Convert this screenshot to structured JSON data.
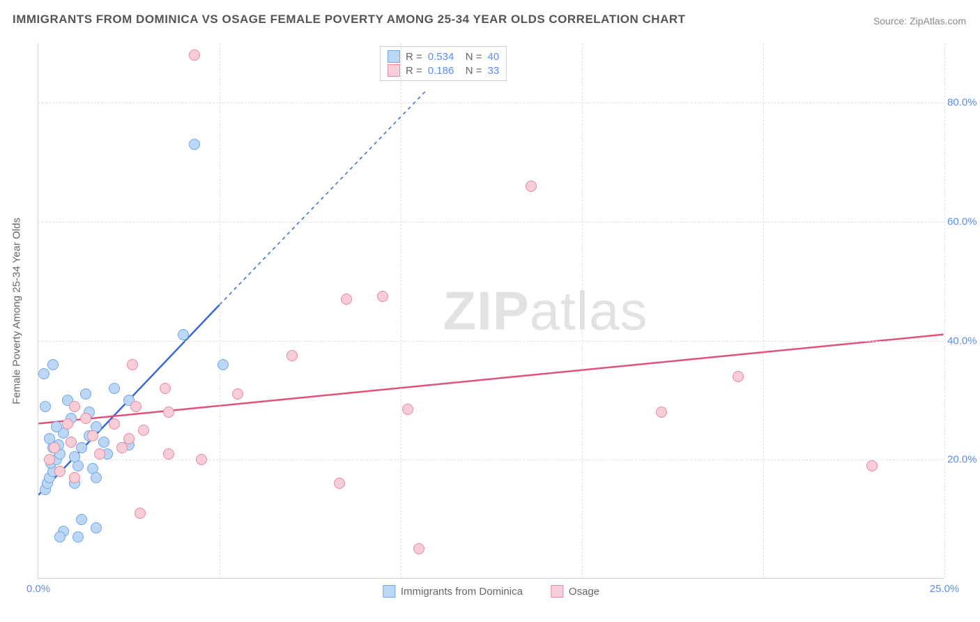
{
  "title": "IMMIGRANTS FROM DOMINICA VS OSAGE FEMALE POVERTY AMONG 25-34 YEAR OLDS CORRELATION CHART",
  "source_label": "Source: ZipAtlas.com",
  "watermark_a": "ZIP",
  "watermark_b": "atlas",
  "chart": {
    "type": "scatter",
    "background_color": "#ffffff",
    "grid_color": "#e0e0e0",
    "axis_color": "#d0d0d0",
    "tick_color": "#5b8def",
    "text_color": "#666666",
    "title_color": "#555555",
    "title_fontsize": 17,
    "label_fontsize": 15,
    "tick_fontsize": 15,
    "ylabel": "Female Poverty Among 25-34 Year Olds",
    "xlim": [
      0,
      25
    ],
    "ylim": [
      0,
      90
    ],
    "xticks": [
      0,
      25
    ],
    "xtick_labels": [
      "0.0%",
      "25.0%"
    ],
    "yticks": [
      20,
      40,
      60,
      80
    ],
    "ytick_labels": [
      "20.0%",
      "40.0%",
      "60.0%",
      "80.0%"
    ],
    "x_gridlines": [
      5,
      10,
      15,
      20,
      25
    ],
    "marker_radius": 8,
    "marker_stroke_width": 1.2,
    "series": [
      {
        "name": "Immigrants from Dominica",
        "color_fill": "#bcd7f5",
        "color_stroke": "#6fa7e6",
        "trend_color": "#3669d6",
        "R": "0.534",
        "N": "40",
        "trend": {
          "x1": 0,
          "y1": 14,
          "x2": 5,
          "y2": 46,
          "dash_to_x": 10.7,
          "dash_to_y": 82
        },
        "points": [
          [
            0.2,
            15
          ],
          [
            0.25,
            16
          ],
          [
            0.3,
            17
          ],
          [
            0.4,
            18
          ],
          [
            0.35,
            19.5
          ],
          [
            0.5,
            20
          ],
          [
            0.6,
            21
          ],
          [
            0.4,
            22
          ],
          [
            0.55,
            22.5
          ],
          [
            0.3,
            23.5
          ],
          [
            0.7,
            24.5
          ],
          [
            0.5,
            25.5
          ],
          [
            0.9,
            27
          ],
          [
            0.2,
            29
          ],
          [
            0.8,
            30
          ],
          [
            0.15,
            34.5
          ],
          [
            0.4,
            36
          ],
          [
            1.1,
            19
          ],
          [
            1.0,
            20.5
          ],
          [
            1.2,
            22
          ],
          [
            1.4,
            24
          ],
          [
            1.6,
            25.5
          ],
          [
            1.4,
            28
          ],
          [
            1.3,
            31
          ],
          [
            1.0,
            16
          ],
          [
            1.5,
            18.5
          ],
          [
            1.9,
            21
          ],
          [
            1.8,
            23
          ],
          [
            2.5,
            22.5
          ],
          [
            2.1,
            32
          ],
          [
            2.5,
            30
          ],
          [
            4.0,
            41
          ],
          [
            5.1,
            36
          ],
          [
            4.3,
            73
          ],
          [
            0.7,
            8
          ],
          [
            1.2,
            10
          ],
          [
            0.6,
            7
          ],
          [
            1.1,
            7
          ],
          [
            1.6,
            8.5
          ],
          [
            1.6,
            17
          ]
        ]
      },
      {
        "name": "Osage",
        "color_fill": "#f7cdd7",
        "color_stroke": "#e48aa0",
        "trend_color": "#e0527a",
        "R": "0.186",
        "N": "33",
        "trend": {
          "x1": 0,
          "y1": 26,
          "x2": 25,
          "y2": 41
        },
        "points": [
          [
            0.3,
            20
          ],
          [
            0.45,
            22
          ],
          [
            0.6,
            18
          ],
          [
            0.9,
            23
          ],
          [
            0.8,
            26
          ],
          [
            1.0,
            29
          ],
          [
            1.3,
            27
          ],
          [
            1.5,
            24
          ],
          [
            1.0,
            17
          ],
          [
            1.7,
            21
          ],
          [
            2.3,
            22
          ],
          [
            2.5,
            23.5
          ],
          [
            2.6,
            36
          ],
          [
            2.9,
            25
          ],
          [
            2.7,
            29
          ],
          [
            3.6,
            28
          ],
          [
            3.5,
            32
          ],
          [
            3.6,
            21
          ],
          [
            4.5,
            20
          ],
          [
            4.3,
            88
          ],
          [
            5.5,
            31
          ],
          [
            7.0,
            37.5
          ],
          [
            8.5,
            47
          ],
          [
            9.5,
            47.5
          ],
          [
            10.2,
            28.5
          ],
          [
            8.3,
            16
          ],
          [
            10.5,
            5
          ],
          [
            13.6,
            66
          ],
          [
            17.2,
            28
          ],
          [
            19.3,
            34
          ],
          [
            23.0,
            19
          ],
          [
            2.1,
            26
          ],
          [
            2.8,
            11
          ]
        ]
      }
    ],
    "legend_top": {
      "r_label": "R =",
      "n_label": "N ="
    }
  }
}
